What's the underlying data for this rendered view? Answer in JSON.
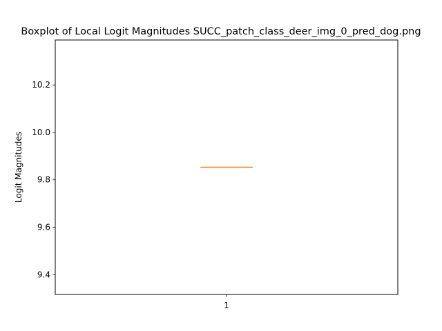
{
  "chart_data": {
    "type": "boxplot",
    "title": "Boxplot of Local Logit Magnitudes SUCC_patch_class_deer_img_0_pred_dog.png",
    "xlabel": "",
    "ylabel": "Logit Magnitudes",
    "categories": [
      "1"
    ],
    "boxes": [
      {
        "category": "1",
        "min": 9.853,
        "q1": 9.853,
        "median": 9.853,
        "q3": 9.853,
        "max": 9.853
      }
    ],
    "ylim": [
      9.3165,
      10.3895
    ],
    "yticks": [
      9.4,
      9.6,
      9.8,
      10.0,
      10.2
    ],
    "ytick_labels": [
      "9.4",
      "9.6",
      "9.8",
      "10.0",
      "10.2"
    ],
    "grid": false,
    "colors": {
      "box": "#000000",
      "median": "#ff7f0e"
    }
  }
}
